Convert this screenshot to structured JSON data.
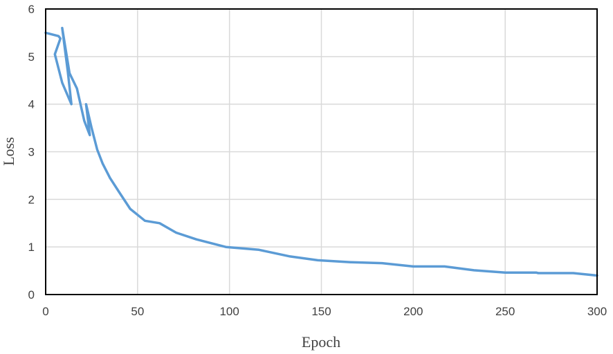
{
  "chart_data": {
    "type": "line",
    "title": "",
    "xlabel": "Epoch",
    "ylabel": "Loss",
    "xlim": [
      0,
      300
    ],
    "ylim": [
      0,
      6
    ],
    "x_ticks": [
      0,
      50,
      100,
      150,
      200,
      250,
      300
    ],
    "y_ticks": [
      0,
      1,
      2,
      3,
      4,
      5,
      6
    ],
    "grid": true,
    "legend": "none",
    "series": [
      {
        "color": "#5b9bd5",
        "points": [
          [
            0,
            5.5
          ],
          [
            7,
            5.43
          ],
          [
            8,
            5.38
          ],
          [
            5,
            5.05
          ],
          [
            9,
            4.45
          ],
          [
            14,
            4.0
          ],
          [
            12,
            4.7
          ],
          [
            9,
            5.6
          ],
          [
            13,
            4.65
          ],
          [
            17,
            4.33
          ],
          [
            21,
            3.65
          ],
          [
            24,
            3.35
          ],
          [
            22,
            4.0
          ],
          [
            25,
            3.5
          ],
          [
            28,
            3.05
          ],
          [
            31,
            2.75
          ],
          [
            35,
            2.45
          ],
          [
            40,
            2.15
          ],
          [
            46,
            1.8
          ],
          [
            54,
            1.55
          ],
          [
            62,
            1.5
          ],
          [
            71,
            1.3
          ],
          [
            82,
            1.16
          ],
          [
            98,
            1.0
          ],
          [
            116,
            0.94
          ],
          [
            133,
            0.8
          ],
          [
            148,
            0.72
          ],
          [
            166,
            0.68
          ],
          [
            183,
            0.66
          ],
          [
            200,
            0.59
          ],
          [
            217,
            0.59
          ],
          [
            233,
            0.51
          ],
          [
            250,
            0.46
          ],
          [
            267,
            0.46
          ],
          [
            268,
            0.45
          ],
          [
            287,
            0.45
          ],
          [
            300,
            0.4
          ]
        ]
      }
    ]
  }
}
